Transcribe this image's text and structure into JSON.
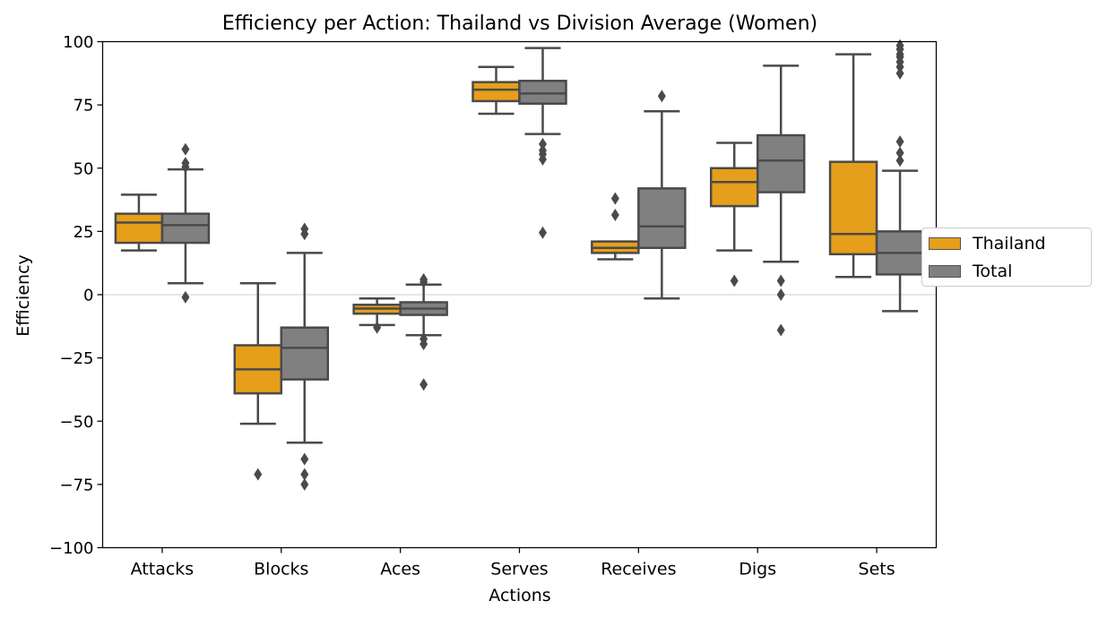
{
  "chart_data": {
    "type": "boxplot",
    "title": "Efficiency per Action: Thailand vs Division Average (Women)",
    "xlabel": "Actions",
    "ylabel": "Efficiency",
    "ylim": [
      -100,
      100
    ],
    "yticks": [
      -100,
      -75,
      -50,
      -25,
      0,
      25,
      50,
      75,
      100
    ],
    "categories": [
      "Attacks",
      "Blocks",
      "Aces",
      "Serves",
      "Receives",
      "Digs",
      "Sets"
    ],
    "reference_line": 0,
    "legend_position": "right-center",
    "series": [
      {
        "name": "Thailand",
        "color": "#e69f1a",
        "boxes": [
          {
            "whislo": 17.5,
            "q1": 20.5,
            "med": 28.5,
            "q3": 32,
            "whishi": 39.5,
            "fliers": []
          },
          {
            "whislo": -51,
            "q1": -39,
            "med": -29.5,
            "q3": -20,
            "whishi": 4.5,
            "fliers": [
              -71
            ]
          },
          {
            "whislo": -12,
            "q1": -7.5,
            "med": -5.5,
            "q3": -4,
            "whishi": -1.5,
            "fliers": [
              -13
            ]
          },
          {
            "whislo": 71.5,
            "q1": 76.5,
            "med": 81,
            "q3": 84,
            "whishi": 90,
            "fliers": []
          },
          {
            "whislo": 14,
            "q1": 16.5,
            "med": 18.5,
            "q3": 21,
            "whishi": 21,
            "fliers": [
              31.5,
              38
            ]
          },
          {
            "whislo": 17.5,
            "q1": 35,
            "med": 44.5,
            "q3": 50,
            "whishi": 60,
            "fliers": [
              5.5
            ]
          },
          {
            "whislo": 7,
            "q1": 16,
            "med": 24,
            "q3": 52.5,
            "whishi": 95,
            "fliers": []
          }
        ]
      },
      {
        "name": "Total",
        "color": "#808080",
        "boxes": [
          {
            "whislo": 4.5,
            "q1": 20.5,
            "med": 27.5,
            "q3": 32,
            "whishi": 49.5,
            "fliers": [
              -1,
              50.5,
              52,
              57.5
            ]
          },
          {
            "whislo": -58.5,
            "q1": -33.5,
            "med": -21,
            "q3": -13,
            "whishi": 16.5,
            "fliers": [
              -65,
              -71,
              -75,
              24,
              26
            ]
          },
          {
            "whislo": -16,
            "q1": -8,
            "med": -5.5,
            "q3": -3,
            "whishi": 4,
            "fliers": [
              -17.5,
              -19.5,
              -35.5,
              5,
              6
            ]
          },
          {
            "whislo": 63.5,
            "q1": 75.5,
            "med": 79.5,
            "q3": 84.5,
            "whishi": 97.5,
            "fliers": [
              24.5,
              53.5,
              55.5,
              57,
              59.5
            ]
          },
          {
            "whislo": -1.5,
            "q1": 18.5,
            "med": 27,
            "q3": 42,
            "whishi": 72.5,
            "fliers": [
              78.5
            ]
          },
          {
            "whislo": 13,
            "q1": 40.5,
            "med": 53,
            "q3": 63,
            "whishi": 90.5,
            "fliers": [
              -14,
              0,
              5.5
            ]
          },
          {
            "whislo": -6.5,
            "q1": 8,
            "med": 16.5,
            "q3": 25,
            "whishi": 49,
            "fliers": [
              53,
              56,
              60.5,
              87.5,
              90,
              92,
              94,
              95,
              97,
              98.5
            ]
          }
        ]
      }
    ]
  }
}
